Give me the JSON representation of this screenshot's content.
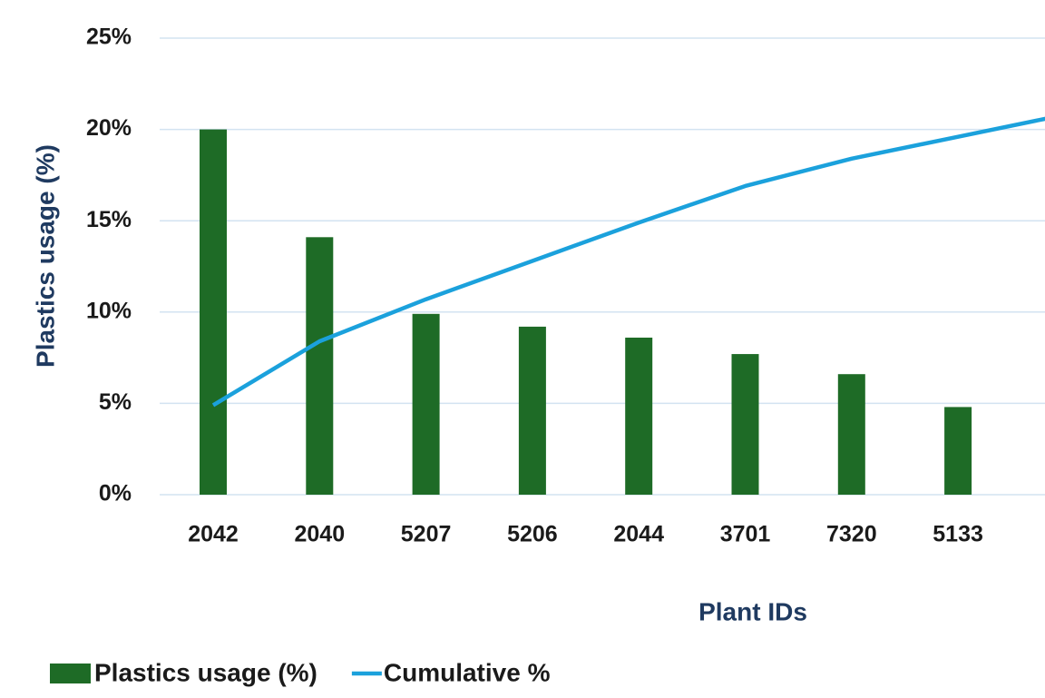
{
  "chart_data": {
    "type": "bar",
    "x_label": "Plant IDs",
    "y_label": "Plastics usage (%)",
    "categories": [
      "2042",
      "2040",
      "5207",
      "5206",
      "2044",
      "3701",
      "7320",
      "5133",
      null
    ],
    "series": [
      {
        "name": "Plastics usage (%)",
        "type": "bar",
        "color": "#1e6b26",
        "values": [
          20.0,
          14.1,
          9.9,
          9.2,
          8.6,
          7.7,
          6.6,
          4.8,
          null
        ]
      },
      {
        "name": "Cumulative %",
        "type": "line",
        "color": "#1ba1dc",
        "values": [
          4.9,
          8.4,
          10.7,
          12.8,
          14.9,
          16.9,
          18.4,
          19.6,
          20.8
        ]
      }
    ],
    "ylim": [
      0,
      25
    ],
    "yticks": [
      {
        "value": 0,
        "label": "0%"
      },
      {
        "value": 5,
        "label": "5%"
      },
      {
        "value": 10,
        "label": "10%"
      },
      {
        "value": 15,
        "label": "15%"
      },
      {
        "value": 20,
        "label": "20%"
      },
      {
        "value": 25,
        "label": "25%"
      }
    ],
    "grid": true,
    "legend": "bottom-left"
  }
}
